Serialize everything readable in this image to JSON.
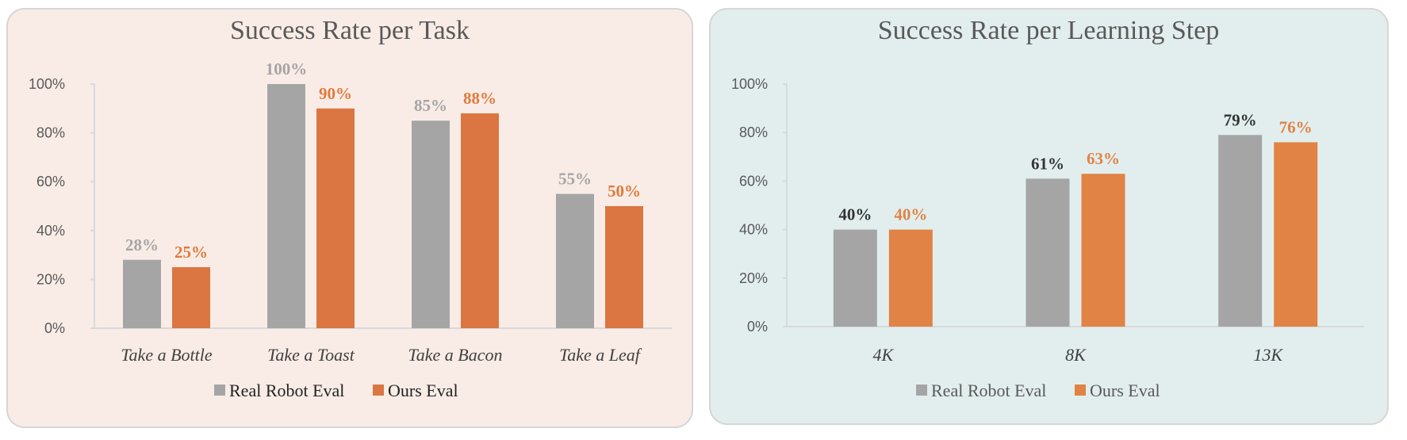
{
  "chart_data": [
    {
      "type": "bar",
      "title": "Success Rate per Task",
      "categories": [
        "Take a Bottle",
        "Take a Toast",
        "Take a Bacon",
        "Take a Leaf"
      ],
      "series": [
        {
          "name": "Real Robot Eval",
          "values": [
            28,
            100,
            85,
            55
          ],
          "labels": [
            "28%",
            "100%",
            "85%",
            "55%"
          ],
          "color": "#a5a5a5",
          "label_color": "#a5a5a5"
        },
        {
          "name": "Ours Eval",
          "values": [
            25,
            90,
            88,
            50
          ],
          "labels": [
            "25%",
            "90%",
            "88%",
            "50%"
          ],
          "color": "#db7642",
          "label_color": "#e07a3c"
        }
      ],
      "yticks": [
        "0%",
        "20%",
        "40%",
        "60%",
        "80%",
        "100%"
      ],
      "ylim": [
        0,
        100
      ],
      "grid": false,
      "legend": "bottom",
      "background": "#f9ece6",
      "legend_text_color": "#222222"
    },
    {
      "type": "bar",
      "title": "Success Rate per Learning Step",
      "categories": [
        "4K",
        "8K",
        "13K"
      ],
      "series": [
        {
          "name": "Real Robot Eval",
          "values": [
            40,
            61,
            79
          ],
          "labels": [
            "40%",
            "61%",
            "79%"
          ],
          "color": "#a5a5a5",
          "label_color": "#333333"
        },
        {
          "name": "Ours Eval",
          "values": [
            40,
            63,
            76
          ],
          "labels": [
            "40%",
            "63%",
            "76%"
          ],
          "color": "#e08345",
          "label_color": "#e08345"
        }
      ],
      "yticks": [
        "0%",
        "20%",
        "40%",
        "60%",
        "80%",
        "100%"
      ],
      "ylim": [
        0,
        100
      ],
      "grid": false,
      "legend": "bottom",
      "background": "#e2eeee",
      "legend_text_color": "#595959"
    }
  ]
}
